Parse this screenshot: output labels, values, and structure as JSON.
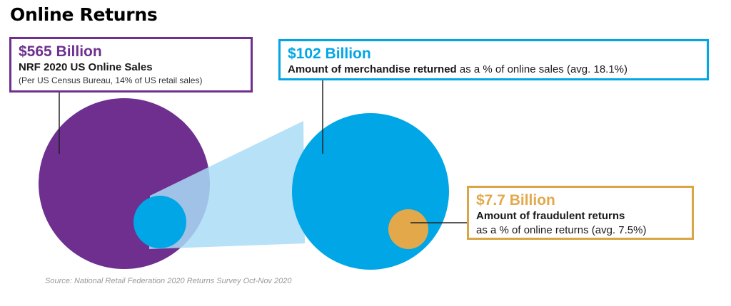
{
  "title": "Online Returns",
  "colors": {
    "sales": "#6e2f8e",
    "returns": "#00a6e6",
    "returns_light": "#a9dcf6",
    "fraud": "#e3a84a",
    "fraud_border": "#d9a545",
    "connector": "#222222"
  },
  "sales": {
    "amount": "$565 Billion",
    "label": "NRF 2020 US Online Sales",
    "note": "(Per US Census Bureau, 14% of US retail sales)"
  },
  "returns": {
    "amount": "$102 Billion",
    "label_bold": "Amount of merchandise returned",
    "label_rest": " as a % of online sales (avg. 18.1%)"
  },
  "fraud": {
    "amount": "$7.7 Billion",
    "label": "Amount of fraudulent returns",
    "sub": "as a % of online returns (avg. 7.5%)"
  },
  "source": "Source: National Retail Federation 2020 Returns Survey Oct-Nov 2020"
}
